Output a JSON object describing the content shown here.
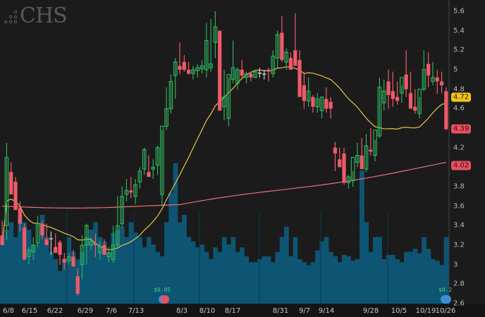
{
  "header": {
    "ticker": "CHS",
    "logo_icon": "dot-grid-logo"
  },
  "colors": {
    "background": "#1b1b1b",
    "up": "#2fae5c",
    "down": "#ef5a6a",
    "doji": "#cccccc",
    "volume": "#0d5573",
    "ma_short": "#e8c547",
    "ma_long": "#e87078",
    "axis_text": "#b8b8b8",
    "tag_yellow_bg": "#f0c419",
    "tag_red_bg": "#e8505f"
  },
  "price_axis": {
    "labels": [
      "5.6",
      "5.4",
      "5.2",
      "5",
      "4.8",
      "4.6",
      "4.2",
      "3.8",
      "3.6",
      "3.4",
      "3.2",
      "3",
      "2.8",
      "2.6"
    ],
    "tags": [
      {
        "value": "4.72",
        "kind": "ma-short"
      },
      {
        "value": "4.39",
        "kind": "last-price"
      },
      {
        "value": "4.02",
        "kind": "ma-long"
      }
    ]
  },
  "date_axis": {
    "labels": [
      "6/8",
      "6/15",
      "6/22",
      "6/29",
      "7/6",
      "7/13",
      "8/3",
      "8/10",
      "8/17",
      "8/31",
      "9/7",
      "9/14",
      "9/28",
      "10/5",
      "10/19",
      "10/26"
    ]
  },
  "events": [
    {
      "label": "$0.05",
      "type": "dividend",
      "icon": "earnings-icon"
    },
    {
      "label": "$0.2",
      "type": "dividend",
      "icon": "lightbulb-icon"
    }
  ],
  "chart_data": {
    "type": "candlestick",
    "title": "CHS",
    "xlabel": "",
    "ylabel": "",
    "ylim": [
      2.6,
      5.65
    ],
    "grid": true,
    "x": [
      "6/4",
      "6/5",
      "6/8",
      "6/9",
      "6/10",
      "6/11",
      "6/12",
      "6/15",
      "6/16",
      "6/17",
      "6/18",
      "6/19",
      "6/22",
      "6/23",
      "6/24",
      "6/25",
      "6/26",
      "6/29",
      "6/30",
      "7/1",
      "7/2",
      "7/6",
      "7/7",
      "7/8",
      "7/9",
      "7/10",
      "7/13",
      "7/14",
      "7/15",
      "7/16",
      "7/17",
      "7/20",
      "7/21",
      "7/22",
      "7/23",
      "7/24",
      "7/27",
      "7/28",
      "7/29",
      "7/30",
      "7/31",
      "8/3",
      "8/4",
      "8/5",
      "8/6",
      "8/7",
      "8/10",
      "8/11",
      "8/12",
      "8/13",
      "8/14",
      "8/17",
      "8/18",
      "8/19",
      "8/20",
      "8/21",
      "8/24",
      "8/25",
      "8/26",
      "8/27",
      "8/28",
      "8/31",
      "9/1",
      "9/2",
      "9/3",
      "9/4",
      "9/8",
      "9/9",
      "9/10",
      "9/11",
      "9/14",
      "9/15",
      "9/16",
      "9/17",
      "9/18",
      "9/21",
      "9/22",
      "9/23",
      "9/24",
      "9/25",
      "9/28",
      "9/29",
      "9/30",
      "10/1",
      "10/2",
      "10/5",
      "10/6",
      "10/7",
      "10/8",
      "10/9",
      "10/12",
      "10/13",
      "10/14",
      "10/15",
      "10/16",
      "10/19",
      "10/20",
      "10/21",
      "10/22",
      "10/23",
      "10/26"
    ],
    "series": [
      {
        "name": "OHLC",
        "open": [
          3.3,
          3.4,
          3.95,
          3.85,
          3.58,
          3.38,
          3.08,
          3.13,
          3.22,
          3.42,
          3.26,
          3.27,
          3.18,
          3.23,
          3.06,
          3.04,
          3.08,
          2.88,
          3.0,
          3.2,
          3.2,
          3.22,
          3.12,
          3.2,
          3.08,
          3.05,
          3.2,
          3.42,
          3.72,
          3.76,
          3.7,
          3.85,
          3.98,
          3.95,
          3.98,
          4.02,
          3.72,
          4.42,
          4.6,
          4.94,
          5.04,
          5.08,
          5.0,
          4.96,
          4.99,
          5.01,
          5.0,
          5.02,
          5.28,
          5.4,
          4.62,
          4.5,
          4.9,
          4.86,
          5.0,
          4.92,
          4.96,
          4.92,
          4.97,
          4.96,
          5.0,
          4.96,
          5.12,
          5.38,
          5.08,
          5.12,
          5.2,
          5.1,
          4.84,
          4.68,
          4.72,
          4.62,
          4.58,
          4.7,
          4.67,
          4.2,
          4.08,
          4.14,
          3.84,
          3.86,
          4.05,
          4.12,
          3.98,
          4.18,
          4.12,
          4.32,
          4.66,
          4.88,
          4.78,
          4.72,
          4.76,
          4.95,
          4.76,
          4.62,
          4.55,
          4.8,
          5.06,
          4.88,
          4.92,
          4.88,
          4.78
        ],
        "high": [
          3.45,
          4.25,
          4.05,
          3.9,
          3.65,
          3.42,
          3.18,
          3.28,
          3.5,
          3.45,
          3.42,
          3.34,
          3.32,
          3.25,
          3.12,
          3.12,
          3.15,
          2.96,
          3.3,
          3.42,
          3.28,
          3.32,
          3.24,
          3.26,
          3.18,
          3.4,
          3.7,
          3.8,
          3.88,
          3.9,
          3.88,
          4.0,
          4.2,
          4.12,
          4.08,
          4.22,
          4.38,
          4.82,
          4.95,
          5.12,
          5.28,
          5.15,
          5.08,
          5.04,
          5.06,
          5.1,
          5.48,
          5.52,
          5.6,
          5.32,
          5.0,
          4.92,
          5.3,
          5.02,
          5.1,
          4.98,
          4.98,
          5.0,
          5.02,
          5.0,
          5.02,
          5.2,
          5.4,
          5.55,
          5.22,
          5.18,
          5.58,
          5.2,
          4.98,
          4.92,
          4.74,
          4.76,
          4.72,
          4.82,
          4.72,
          4.26,
          4.2,
          4.2,
          3.92,
          3.96,
          4.25,
          4.3,
          4.34,
          4.4,
          4.28,
          4.92,
          4.9,
          5.0,
          4.98,
          4.88,
          4.84,
          5.2,
          4.98,
          4.8,
          4.72,
          5.2,
          5.18,
          5.08,
          5.0,
          4.98,
          4.82
        ],
        "low": [
          3.2,
          3.25,
          3.72,
          3.56,
          3.34,
          3.05,
          3.0,
          3.05,
          3.18,
          3.26,
          3.2,
          3.1,
          3.15,
          3.0,
          2.95,
          3.0,
          2.98,
          2.68,
          2.85,
          3.0,
          3.15,
          3.08,
          3.05,
          3.1,
          3.02,
          3.02,
          3.16,
          3.38,
          3.65,
          3.68,
          3.62,
          3.78,
          3.92,
          3.9,
          3.88,
          3.92,
          3.6,
          4.38,
          4.55,
          4.7,
          4.95,
          4.98,
          4.95,
          4.9,
          4.92,
          4.96,
          4.92,
          4.98,
          5.12,
          4.88,
          4.48,
          4.42,
          4.86,
          4.8,
          4.92,
          4.86,
          4.88,
          4.92,
          4.92,
          4.9,
          4.88,
          4.92,
          5.02,
          5.08,
          5.0,
          5.02,
          5.08,
          4.86,
          4.6,
          4.62,
          4.56,
          4.56,
          4.5,
          4.56,
          4.5,
          3.96,
          4.0,
          3.82,
          3.78,
          3.8,
          4.0,
          4.08,
          3.95,
          4.12,
          4.06,
          4.3,
          4.58,
          4.6,
          4.62,
          4.64,
          4.66,
          4.72,
          4.76,
          4.55,
          4.5,
          4.78,
          4.82,
          4.84,
          4.75,
          4.76,
          4.38
        ],
        "close": [
          3.2,
          4.1,
          3.72,
          3.56,
          3.42,
          3.05,
          3.15,
          3.2,
          3.42,
          3.3,
          3.2,
          3.26,
          3.12,
          3.1,
          3.02,
          3.08,
          2.98,
          2.7,
          3.2,
          3.4,
          3.24,
          3.2,
          3.18,
          3.1,
          3.12,
          3.2,
          3.4,
          3.7,
          3.76,
          3.74,
          3.82,
          3.96,
          4.18,
          3.9,
          4.0,
          4.2,
          4.42,
          4.6,
          4.88,
          5.08,
          5.0,
          5.0,
          4.96,
          5.0,
          5.02,
          5.04,
          5.3,
          5.06,
          5.44,
          4.58,
          4.72,
          4.95,
          5.02,
          5.0,
          4.94,
          4.96,
          4.92,
          4.98,
          4.96,
          4.95,
          4.98,
          5.14,
          5.36,
          5.1,
          5.18,
          5.0,
          5.04,
          4.72,
          4.68,
          4.78,
          4.62,
          4.7,
          4.72,
          4.6,
          4.6,
          4.14,
          4.0,
          3.84,
          3.9,
          4.1,
          4.12,
          3.98,
          4.22,
          4.16,
          4.38,
          4.82,
          4.78,
          4.74,
          4.7,
          4.68,
          4.92,
          4.8,
          4.6,
          4.58,
          4.8,
          5.0,
          4.94,
          4.92,
          4.88,
          4.84,
          4.39
        ]
      },
      {
        "name": "MA short (yellow)",
        "last": 4.72
      },
      {
        "name": "MA long (red)",
        "last": 4.02
      }
    ],
    "volume_relative": [
      0.45,
      0.5,
      0.55,
      0.45,
      0.6,
      0.55,
      0.5,
      0.4,
      0.4,
      0.6,
      0.45,
      0.35,
      0.3,
      0.22,
      0.3,
      0.45,
      0.35,
      0.3,
      0.35,
      0.45,
      0.5,
      0.55,
      0.45,
      0.42,
      0.35,
      0.48,
      0.5,
      0.52,
      0.45,
      0.55,
      0.48,
      0.45,
      0.38,
      0.45,
      0.4,
      0.35,
      0.32,
      0.55,
      0.75,
      0.95,
      0.55,
      0.6,
      0.45,
      0.42,
      0.38,
      0.4,
      0.35,
      0.3,
      0.38,
      0.35,
      0.45,
      0.4,
      0.45,
      0.35,
      0.38,
      0.32,
      0.28,
      0.28,
      0.3,
      0.32,
      0.32,
      0.28,
      0.35,
      0.45,
      0.52,
      0.32,
      0.45,
      0.3,
      0.28,
      0.26,
      0.28,
      0.36,
      0.42,
      0.45,
      0.35,
      0.32,
      0.28,
      0.33,
      0.32,
      0.29,
      0.3,
      0.9,
      0.55,
      0.35,
      0.45,
      0.45,
      0.3,
      0.33,
      0.33,
      0.3,
      0.28,
      0.35,
      0.35,
      0.37,
      0.34,
      0.45,
      0.37,
      0.3,
      0.29,
      0.26,
      0.45
    ]
  }
}
